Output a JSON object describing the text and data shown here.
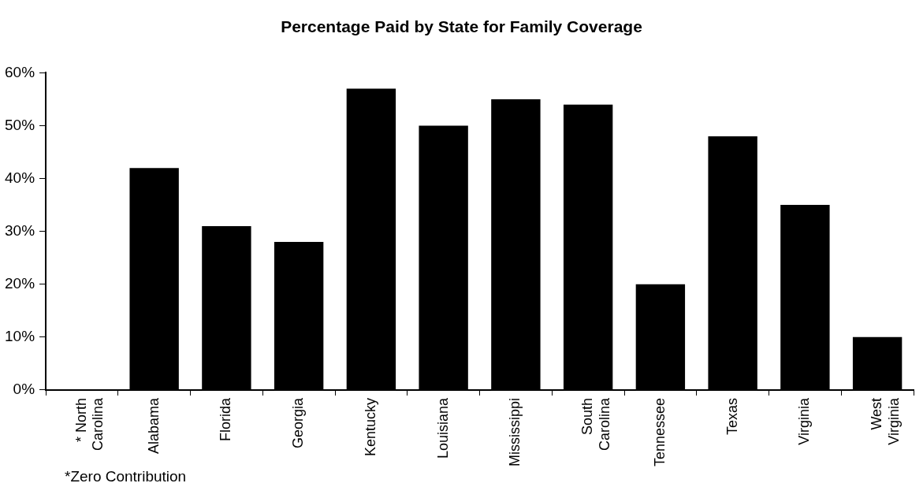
{
  "chart_data": {
    "type": "bar",
    "title": "Percentage Paid by State for Family Coverage",
    "categories": [
      "* North\nCarolina",
      "Alabama",
      "Florida",
      "Georgia",
      "Kentucky",
      "Louisiana",
      "Mississippi",
      "South\nCarolina",
      "Tennessee",
      "Texas",
      "Virginia",
      "West\nVirginia"
    ],
    "values": [
      0,
      42,
      31,
      28,
      57,
      50,
      55,
      54,
      20,
      48,
      35,
      10
    ],
    "color": "#000000",
    "ylim": [
      0,
      60
    ],
    "yticks": [
      {
        "value": 0,
        "label": "0%"
      },
      {
        "value": 10,
        "label": "10%"
      },
      {
        "value": 20,
        "label": "20%"
      },
      {
        "value": 30,
        "label": "30%"
      },
      {
        "value": 40,
        "label": "40%"
      },
      {
        "value": 50,
        "label": "50%"
      },
      {
        "value": 60,
        "label": "60%"
      }
    ],
    "grid": false,
    "legend": false,
    "annotations": [
      "*Zero Contribution"
    ]
  }
}
